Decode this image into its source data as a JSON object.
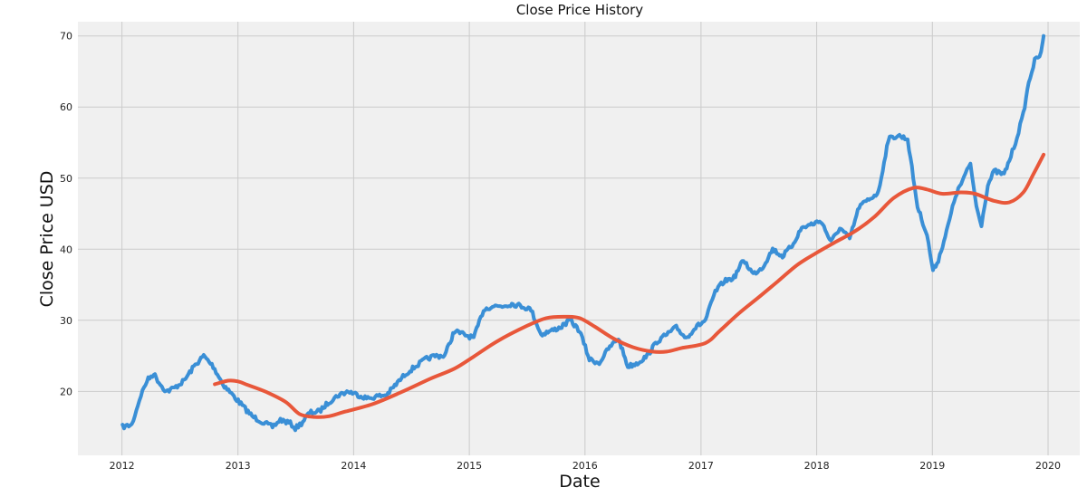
{
  "chart_data": {
    "type": "line",
    "title": "Close Price History",
    "xlabel": "Date",
    "ylabel": "Close Price USD",
    "xlim": [
      "2011-08-15",
      "2020-04-10"
    ],
    "ylim": [
      11,
      72
    ],
    "x_ticks": [
      "2012",
      "2013",
      "2014",
      "2015",
      "2016",
      "2017",
      "2018",
      "2019",
      "2020"
    ],
    "y_ticks": [
      20,
      30,
      40,
      50,
      60,
      70
    ],
    "grid": true,
    "legend": "none",
    "series": [
      {
        "color": "#3a8fd6",
        "points": [
          [
            "2012-01-03",
            15.0
          ],
          [
            "2012-02-01",
            15.3
          ],
          [
            "2012-03-01",
            19.5
          ],
          [
            "2012-03-20",
            21.5
          ],
          [
            "2012-04-10",
            22.5
          ],
          [
            "2012-05-01",
            21.0
          ],
          [
            "2012-05-20",
            20.0
          ],
          [
            "2012-06-15",
            20.5
          ],
          [
            "2012-07-15",
            21.5
          ],
          [
            "2012-08-15",
            23.5
          ],
          [
            "2012-09-15",
            25.0
          ],
          [
            "2012-10-15",
            23.5
          ],
          [
            "2012-11-15",
            21.0
          ],
          [
            "2012-12-15",
            19.5
          ],
          [
            "2013-01-15",
            18.0
          ],
          [
            "2013-02-15",
            16.5
          ],
          [
            "2013-03-15",
            15.8
          ],
          [
            "2013-04-20",
            15.0
          ],
          [
            "2013-05-15",
            16.0
          ],
          [
            "2013-06-15",
            15.5
          ],
          [
            "2013-07-01",
            14.8
          ],
          [
            "2013-07-20",
            15.5
          ],
          [
            "2013-08-15",
            17.0
          ],
          [
            "2013-09-15",
            17.2
          ],
          [
            "2013-10-15",
            18.5
          ],
          [
            "2013-11-15",
            19.5
          ],
          [
            "2013-12-15",
            20.0
          ],
          [
            "2014-01-15",
            19.5
          ],
          [
            "2014-02-15",
            19.0
          ],
          [
            "2014-03-15",
            19.3
          ],
          [
            "2014-04-15",
            19.5
          ],
          [
            "2014-05-15",
            21.0
          ],
          [
            "2014-06-15",
            22.5
          ],
          [
            "2014-07-15",
            23.5
          ],
          [
            "2014-08-15",
            24.5
          ],
          [
            "2014-09-15",
            25.0
          ],
          [
            "2014-10-15",
            25.0
          ],
          [
            "2014-11-15",
            28.5
          ],
          [
            "2014-12-15",
            28.0
          ],
          [
            "2015-01-15",
            27.5
          ],
          [
            "2015-02-15",
            31.5
          ],
          [
            "2015-03-15",
            32.0
          ],
          [
            "2015-04-15",
            32.0
          ],
          [
            "2015-05-15",
            32.3
          ],
          [
            "2015-06-15",
            32.0
          ],
          [
            "2015-07-15",
            31.5
          ],
          [
            "2015-08-15",
            28.0
          ],
          [
            "2015-09-15",
            28.5
          ],
          [
            "2015-10-15",
            29.0
          ],
          [
            "2015-11-15",
            30.0
          ],
          [
            "2015-12-15",
            28.5
          ],
          [
            "2016-01-15",
            24.5
          ],
          [
            "2016-02-15",
            24.0
          ],
          [
            "2016-03-15",
            26.0
          ],
          [
            "2016-04-15",
            27.5
          ],
          [
            "2016-05-15",
            23.5
          ],
          [
            "2016-06-15",
            24.0
          ],
          [
            "2016-07-15",
            25.0
          ],
          [
            "2016-08-15",
            27.0
          ],
          [
            "2016-09-15",
            28.0
          ],
          [
            "2016-10-15",
            29.0
          ],
          [
            "2016-11-15",
            27.5
          ],
          [
            "2016-12-15",
            29.0
          ],
          [
            "2017-01-15",
            30.0
          ],
          [
            "2017-02-15",
            34.0
          ],
          [
            "2017-03-15",
            35.5
          ],
          [
            "2017-04-15",
            36.0
          ],
          [
            "2017-05-15",
            38.5
          ],
          [
            "2017-06-15",
            36.5
          ],
          [
            "2017-07-15",
            37.5
          ],
          [
            "2017-08-15",
            40.0
          ],
          [
            "2017-09-15",
            39.0
          ],
          [
            "2017-10-15",
            40.5
          ],
          [
            "2017-11-15",
            43.0
          ],
          [
            "2017-12-15",
            43.5
          ],
          [
            "2018-01-15",
            44.0
          ],
          [
            "2018-02-15",
            41.0
          ],
          [
            "2018-03-15",
            43.0
          ],
          [
            "2018-04-15",
            41.5
          ],
          [
            "2018-05-15",
            46.0
          ],
          [
            "2018-06-15",
            47.0
          ],
          [
            "2018-07-15",
            48.0
          ],
          [
            "2018-08-15",
            55.5
          ],
          [
            "2018-09-15",
            56.0
          ],
          [
            "2018-10-15",
            55.5
          ],
          [
            "2018-11-15",
            46.0
          ],
          [
            "2018-12-15",
            42.0
          ],
          [
            "2019-01-03",
            37.0
          ],
          [
            "2019-01-20",
            38.5
          ],
          [
            "2019-02-15",
            42.5
          ],
          [
            "2019-03-15",
            47.5
          ],
          [
            "2019-04-15",
            50.5
          ],
          [
            "2019-05-01",
            52.0
          ],
          [
            "2019-05-20",
            46.0
          ],
          [
            "2019-06-05",
            43.5
          ],
          [
            "2019-06-25",
            49.0
          ],
          [
            "2019-07-15",
            51.0
          ],
          [
            "2019-08-15",
            50.5
          ],
          [
            "2019-09-01",
            52.5
          ],
          [
            "2019-09-20",
            55.0
          ],
          [
            "2019-10-15",
            59.0
          ],
          [
            "2019-11-01",
            63.5
          ],
          [
            "2019-11-20",
            66.5
          ],
          [
            "2019-12-10",
            67.5
          ],
          [
            "2019-12-18",
            70.0
          ]
        ]
      },
      {
        "color": "#e8573a",
        "points": [
          [
            "2012-10-20",
            21.0
          ],
          [
            "2012-12-01",
            21.5
          ],
          [
            "2013-01-01",
            21.4
          ],
          [
            "2013-02-01",
            20.9
          ],
          [
            "2013-04-01",
            19.9
          ],
          [
            "2013-06-01",
            18.5
          ],
          [
            "2013-07-15",
            16.8
          ],
          [
            "2013-09-01",
            16.4
          ],
          [
            "2013-10-15",
            16.5
          ],
          [
            "2013-12-01",
            17.1
          ],
          [
            "2014-03-01",
            18.2
          ],
          [
            "2014-06-01",
            19.9
          ],
          [
            "2014-09-01",
            21.8
          ],
          [
            "2014-11-15",
            23.2
          ],
          [
            "2015-01-15",
            24.9
          ],
          [
            "2015-04-01",
            27.1
          ],
          [
            "2015-07-01",
            29.2
          ],
          [
            "2015-09-01",
            30.3
          ],
          [
            "2015-11-01",
            30.5
          ],
          [
            "2015-12-15",
            30.3
          ],
          [
            "2016-02-01",
            29.1
          ],
          [
            "2016-04-01",
            27.4
          ],
          [
            "2016-06-01",
            26.2
          ],
          [
            "2016-08-01",
            25.6
          ],
          [
            "2016-09-15",
            25.6
          ],
          [
            "2016-11-01",
            26.1
          ],
          [
            "2017-01-15",
            26.8
          ],
          [
            "2017-03-01",
            28.5
          ],
          [
            "2017-05-01",
            31.0
          ],
          [
            "2017-07-01",
            33.2
          ],
          [
            "2017-09-01",
            35.5
          ],
          [
            "2017-11-01",
            37.8
          ],
          [
            "2018-01-01",
            39.5
          ],
          [
            "2018-03-01",
            41.0
          ],
          [
            "2018-05-01",
            42.5
          ],
          [
            "2018-07-01",
            44.5
          ],
          [
            "2018-09-01",
            47.2
          ],
          [
            "2018-11-01",
            48.6
          ],
          [
            "2018-12-15",
            48.4
          ],
          [
            "2019-02-01",
            47.8
          ],
          [
            "2019-04-01",
            48.0
          ],
          [
            "2019-05-15",
            47.8
          ],
          [
            "2019-07-15",
            46.8
          ],
          [
            "2019-09-01",
            46.6
          ],
          [
            "2019-10-15",
            48.0
          ],
          [
            "2019-11-15",
            50.5
          ],
          [
            "2019-12-18",
            53.3
          ]
        ]
      }
    ]
  }
}
